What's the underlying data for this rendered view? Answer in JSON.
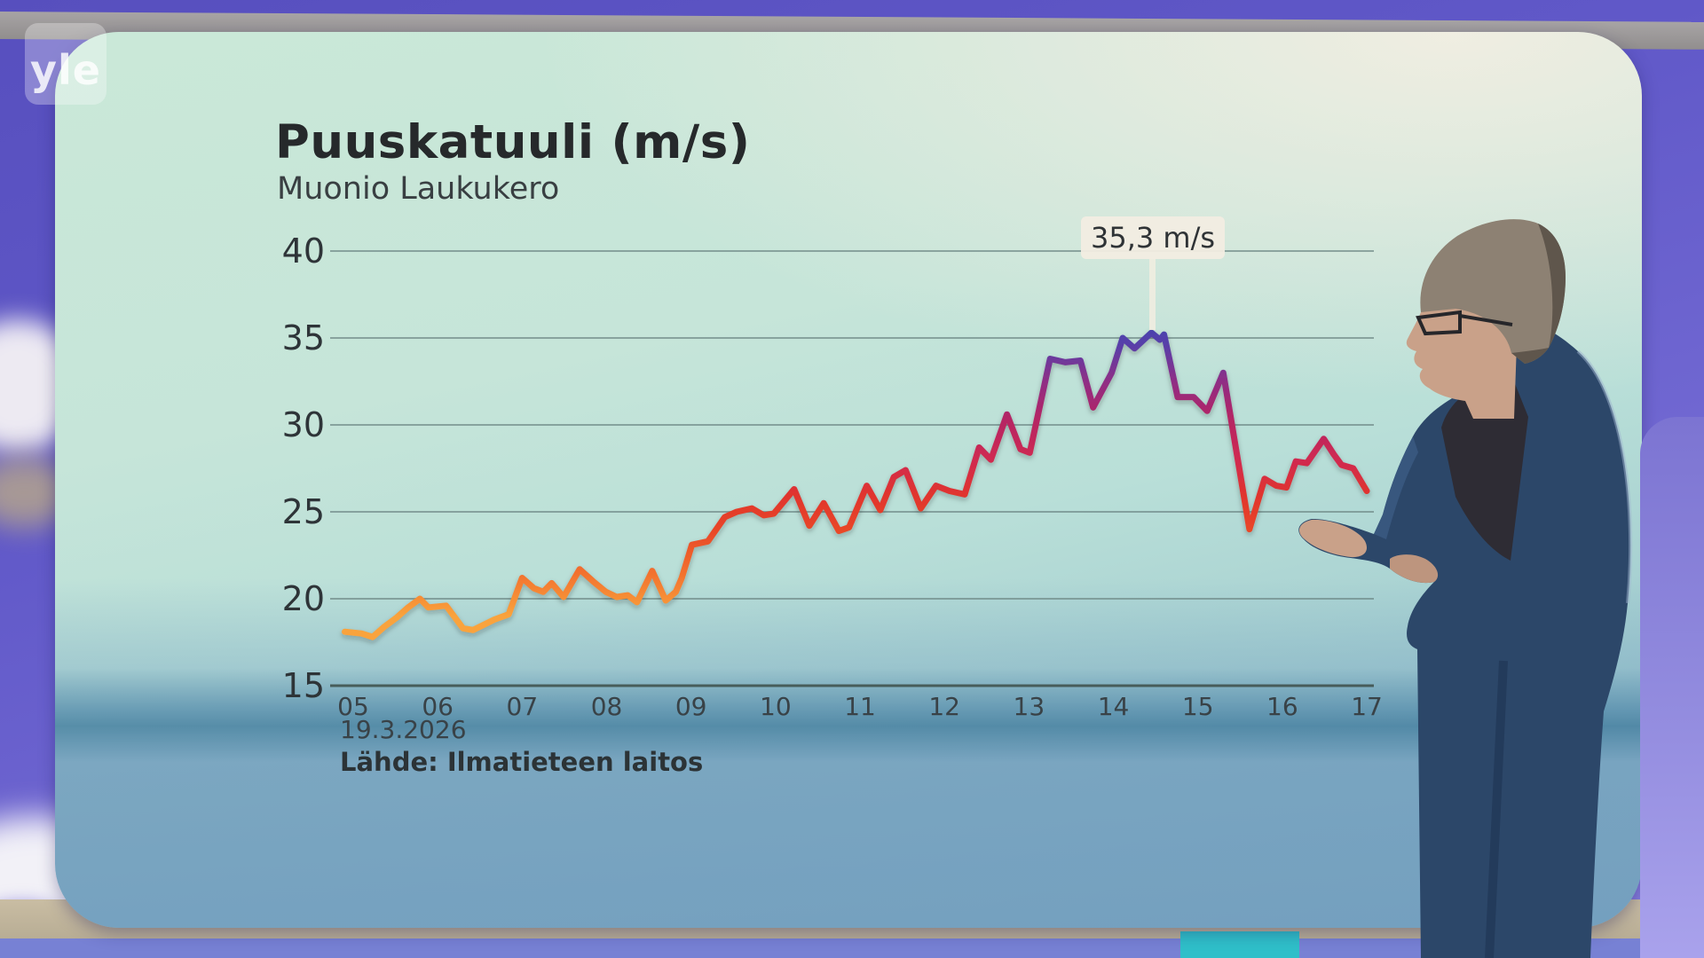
{
  "branding": {
    "logo_text": "yle"
  },
  "screen": {
    "description_colors": {
      "screen_top": "#CAE8D8",
      "screen_bottom": "#8DB5C7",
      "wall_purple": "#6058C8",
      "floor_beige": "#C9BDA3",
      "floor_blue": "#7781D4",
      "floor_cyan": "#2FBFC9"
    }
  },
  "chart_data": {
    "type": "line",
    "title": "Puuskatuuli (m/s)",
    "subtitle": "Muonio Laukukero",
    "xlabel": "",
    "ylabel": "",
    "date_label": "19.3.2026",
    "source": "Lähde: Ilmatieteen laitos",
    "grid": "horizontal-only",
    "legend": "none",
    "ylim": [
      15,
      40
    ],
    "xlim_hours": [
      5,
      17
    ],
    "y_ticks": [
      40,
      35,
      30,
      25,
      20,
      15
    ],
    "x_ticks": [
      {
        "hour": 5,
        "label": "05"
      },
      {
        "hour": 6,
        "label": "06"
      },
      {
        "hour": 7,
        "label": "07"
      },
      {
        "hour": 8,
        "label": "08"
      },
      {
        "hour": 9,
        "label": "09"
      },
      {
        "hour": 10,
        "label": "10"
      },
      {
        "hour": 11,
        "label": "11"
      },
      {
        "hour": 12,
        "label": "12"
      },
      {
        "hour": 13,
        "label": "13"
      },
      {
        "hour": 14,
        "label": "14"
      },
      {
        "hour": 15,
        "label": "15"
      },
      {
        "hour": 16,
        "label": "16"
      },
      {
        "hour": 17,
        "label": "17"
      }
    ],
    "annotation": {
      "label": "35,3 m/s",
      "hour": 14.47,
      "value": 35.3
    },
    "value_color_scale": [
      {
        "value": 15.0,
        "color": "#F9A33C"
      },
      {
        "value": 19.0,
        "color": "#F9A33C"
      },
      {
        "value": 21.5,
        "color": "#F2712E"
      },
      {
        "value": 24.0,
        "color": "#E84628"
      },
      {
        "value": 26.0,
        "color": "#E0342E"
      },
      {
        "value": 28.0,
        "color": "#D02A50"
      },
      {
        "value": 30.5,
        "color": "#B22566"
      },
      {
        "value": 32.5,
        "color": "#8F2E85"
      },
      {
        "value": 34.5,
        "color": "#5B3EA8"
      },
      {
        "value": 36.0,
        "color": "#4147B0"
      }
    ],
    "series": [
      {
        "name": "Puuskatuuli m/s",
        "points": [
          [
            4.9,
            18.1
          ],
          [
            5.1,
            18.0
          ],
          [
            5.23,
            17.8
          ],
          [
            5.37,
            18.4
          ],
          [
            5.51,
            18.9
          ],
          [
            5.65,
            19.5
          ],
          [
            5.79,
            20.0
          ],
          [
            5.89,
            19.5
          ],
          [
            6.1,
            19.6
          ],
          [
            6.3,
            18.3
          ],
          [
            6.42,
            18.2
          ],
          [
            6.67,
            18.8
          ],
          [
            6.84,
            19.1
          ],
          [
            7.0,
            21.2
          ],
          [
            7.14,
            20.6
          ],
          [
            7.25,
            20.4
          ],
          [
            7.35,
            20.9
          ],
          [
            7.49,
            20.1
          ],
          [
            7.68,
            21.7
          ],
          [
            7.84,
            21.0
          ],
          [
            7.99,
            20.4
          ],
          [
            8.12,
            20.1
          ],
          [
            8.25,
            20.2
          ],
          [
            8.36,
            19.8
          ],
          [
            8.54,
            21.6
          ],
          [
            8.7,
            19.9
          ],
          [
            8.82,
            20.4
          ],
          [
            8.89,
            21.2
          ],
          [
            9.01,
            23.1
          ],
          [
            9.2,
            23.3
          ],
          [
            9.4,
            24.7
          ],
          [
            9.54,
            25.0
          ],
          [
            9.72,
            25.2
          ],
          [
            9.86,
            24.8
          ],
          [
            9.98,
            24.9
          ],
          [
            10.22,
            26.3
          ],
          [
            10.4,
            24.2
          ],
          [
            10.57,
            25.5
          ],
          [
            10.75,
            23.9
          ],
          [
            10.87,
            24.1
          ],
          [
            11.08,
            26.5
          ],
          [
            11.24,
            25.1
          ],
          [
            11.4,
            27.0
          ],
          [
            11.54,
            27.4
          ],
          [
            11.72,
            25.2
          ],
          [
            11.9,
            26.5
          ],
          [
            12.06,
            26.2
          ],
          [
            12.24,
            26.0
          ],
          [
            12.41,
            28.7
          ],
          [
            12.55,
            28.0
          ],
          [
            12.74,
            30.6
          ],
          [
            12.9,
            28.6
          ],
          [
            13.01,
            28.4
          ],
          [
            13.25,
            33.8
          ],
          [
            13.43,
            33.6
          ],
          [
            13.61,
            33.7
          ],
          [
            13.76,
            31.0
          ],
          [
            13.98,
            33.0
          ],
          [
            14.11,
            35.0
          ],
          [
            14.25,
            34.4
          ],
          [
            14.45,
            35.3
          ],
          [
            14.55,
            34.9
          ],
          [
            14.6,
            35.2
          ],
          [
            14.76,
            31.6
          ],
          [
            14.95,
            31.6
          ],
          [
            15.11,
            30.8
          ],
          [
            15.3,
            33.0
          ],
          [
            15.61,
            24.0
          ],
          [
            15.79,
            26.9
          ],
          [
            15.93,
            26.5
          ],
          [
            16.05,
            26.4
          ],
          [
            16.16,
            27.9
          ],
          [
            16.29,
            27.8
          ],
          [
            16.49,
            29.2
          ],
          [
            16.61,
            28.3
          ],
          [
            16.7,
            27.7
          ],
          [
            16.84,
            27.5
          ],
          [
            17.0,
            26.2
          ]
        ]
      }
    ]
  }
}
